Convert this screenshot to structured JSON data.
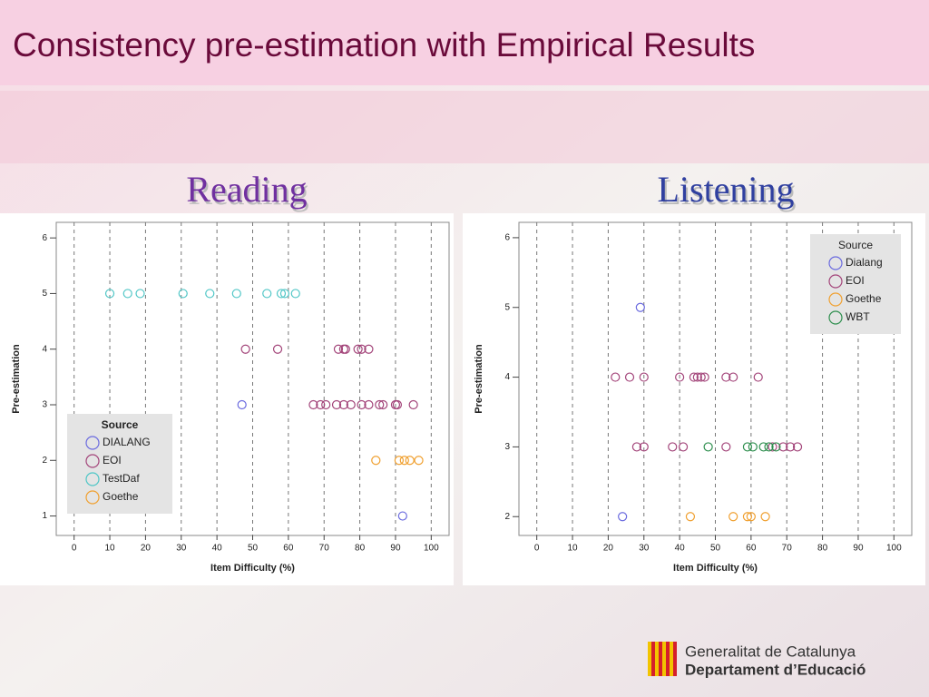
{
  "slide": {
    "title": "Consistency pre-estimation with Empirical Results",
    "footer": [
      "Generalitat de Catalunya",
      "Departament d’Educació"
    ]
  },
  "chart_data": [
    {
      "type": "scatter",
      "title": "Reading",
      "xlabel": "Item Difficulty (%)",
      "ylabel": "Pre-estimation",
      "xlim": [
        -5,
        105
      ],
      "ylim": [
        0.65,
        6.28
      ],
      "xticks": [
        0,
        10,
        20,
        30,
        40,
        50,
        60,
        70,
        80,
        90,
        100
      ],
      "yticks": [
        1,
        2,
        3,
        4,
        5,
        6
      ],
      "grid": "x",
      "legend": "lower left",
      "legend_title": "Source",
      "series": [
        {
          "name": "DIALANG",
          "color": "#6b6bdf",
          "x": [
            47,
            92
          ],
          "values": [
            3,
            1
          ]
        },
        {
          "name": "EOI",
          "color": "#a3457a",
          "x": [
            48,
            57,
            74,
            75.5,
            76,
            79.5,
            80.5,
            82.5,
            67,
            69,
            70.5,
            73.5,
            75.5,
            77.5,
            80.5,
            82.5,
            85.5,
            86.5,
            90,
            90.5,
            95
          ],
          "values": [
            4,
            4,
            4,
            4,
            4,
            4,
            4,
            4,
            3,
            3,
            3,
            3,
            3,
            3,
            3,
            3,
            3,
            3,
            3,
            3,
            3
          ]
        },
        {
          "name": "TestDaf",
          "color": "#4fc6c6",
          "x": [
            10,
            15,
            18.5,
            30.5,
            38,
            45.5,
            54,
            58,
            59,
            62
          ],
          "values": [
            5,
            5,
            5,
            5,
            5,
            5,
            5,
            5,
            5,
            5
          ]
        },
        {
          "name": "Goethe",
          "color": "#f0a030",
          "x": [
            84.5,
            91,
            92.5,
            94,
            96.5
          ],
          "values": [
            2,
            2,
            2,
            2,
            2
          ]
        }
      ]
    },
    {
      "type": "scatter",
      "title": "Listening",
      "xlabel": "Item Difficulty (%)",
      "ylabel": "Pre-estimation",
      "xlim": [
        -5,
        105
      ],
      "ylim": [
        1.73,
        6.22
      ],
      "xticks": [
        0,
        10,
        20,
        30,
        40,
        50,
        60,
        70,
        80,
        90,
        100
      ],
      "yticks": [
        2,
        3,
        4,
        5,
        6
      ],
      "grid": "x",
      "legend": "upper right",
      "legend_title": "Source",
      "series": [
        {
          "name": "Dialang",
          "color": "#6b6bdf",
          "x": [
            29,
            24
          ],
          "values": [
            5,
            2
          ]
        },
        {
          "name": "EOI",
          "color": "#a3457a",
          "x": [
            22,
            26,
            30,
            40,
            44,
            45,
            46,
            47,
            53,
            55,
            62,
            28,
            30,
            38,
            41,
            53,
            66,
            69,
            71,
            73
          ],
          "values": [
            4,
            4,
            4,
            4,
            4,
            4,
            4,
            4,
            4,
            4,
            4,
            3,
            3,
            3,
            3,
            3,
            3,
            3,
            3,
            3
          ]
        },
        {
          "name": "Goethe",
          "color": "#f0a030",
          "x": [
            43,
            55,
            59,
            60,
            64
          ],
          "values": [
            2,
            2,
            2,
            2,
            2
          ]
        },
        {
          "name": "WBT",
          "color": "#2f8f4f",
          "x": [
            48,
            59,
            60.5,
            63.5,
            65,
            67
          ],
          "values": [
            3,
            3,
            3,
            3,
            3,
            3
          ]
        }
      ]
    }
  ]
}
